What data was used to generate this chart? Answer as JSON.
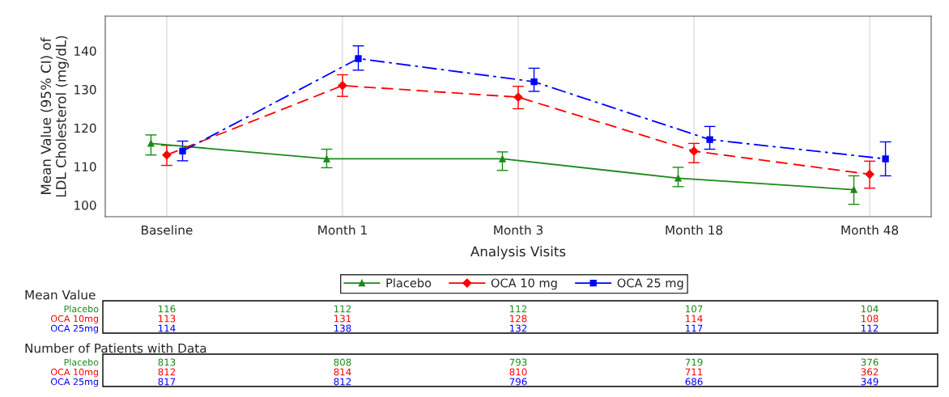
{
  "chart_data": {
    "type": "line",
    "xlabel": "Analysis Visits",
    "ylabel": "Mean Value (95% CI) of\nLDL Cholesterol (mg/dL)",
    "categories": [
      "Baseline",
      "Month 1",
      "Month 3",
      "Month 18",
      "Month 48"
    ],
    "ylim": [
      97,
      149
    ],
    "yticks": [
      100,
      110,
      120,
      130,
      140
    ],
    "grid": "x",
    "legend": "bottom",
    "series": [
      {
        "name": "Placebo",
        "color": "#1a8a1a",
        "marker": "triangle",
        "line_style": "solid",
        "values": [
          116,
          112,
          112,
          107,
          104
        ],
        "value_labels": [
          "116",
          "112",
          "112",
          "107",
          "104"
        ],
        "errors": [
          [
            113,
            118.2
          ],
          [
            109.7,
            114.5
          ],
          [
            109,
            113.8
          ],
          [
            104.8,
            109.8
          ],
          [
            100.2,
            107.6
          ]
        ]
      },
      {
        "name": "OCA 10 mg",
        "color": "#ff0000",
        "marker": "diamond",
        "line_style": "dashed",
        "values": [
          113,
          131,
          128,
          114,
          108
        ],
        "value_labels": [
          "113",
          "131",
          "128",
          "114",
          "108"
        ],
        "errors": [
          [
            110.3,
            115.5
          ],
          [
            128.2,
            133.8
          ],
          [
            125,
            130.8
          ],
          [
            111,
            116
          ],
          [
            104.4,
            111.4
          ]
        ]
      },
      {
        "name": "OCA 25 mg",
        "color": "#0000ff",
        "marker": "square",
        "line_style": "dashdot",
        "values": [
          114,
          138,
          132,
          117,
          112
        ],
        "value_labels": [
          "114",
          "138",
          "132",
          "117",
          "112"
        ],
        "errors": [
          [
            111.5,
            116.6
          ],
          [
            135,
            141.3
          ],
          [
            129.5,
            135.5
          ],
          [
            114.5,
            120.4
          ],
          [
            107.6,
            116.4
          ]
        ]
      }
    ],
    "annotations": [
      "Mean Value",
      "Placebo",
      "OCA 10mg",
      "OCA 25mg",
      "Number of Patients with Data",
      "Placebo",
      "OCA 10mg",
      "OCA 25mg",
      "813",
      "808",
      "793",
      "719",
      "376",
      "812",
      "814",
      "810",
      "711",
      "362",
      "817",
      "812",
      "796",
      "686",
      "349"
    ]
  }
}
